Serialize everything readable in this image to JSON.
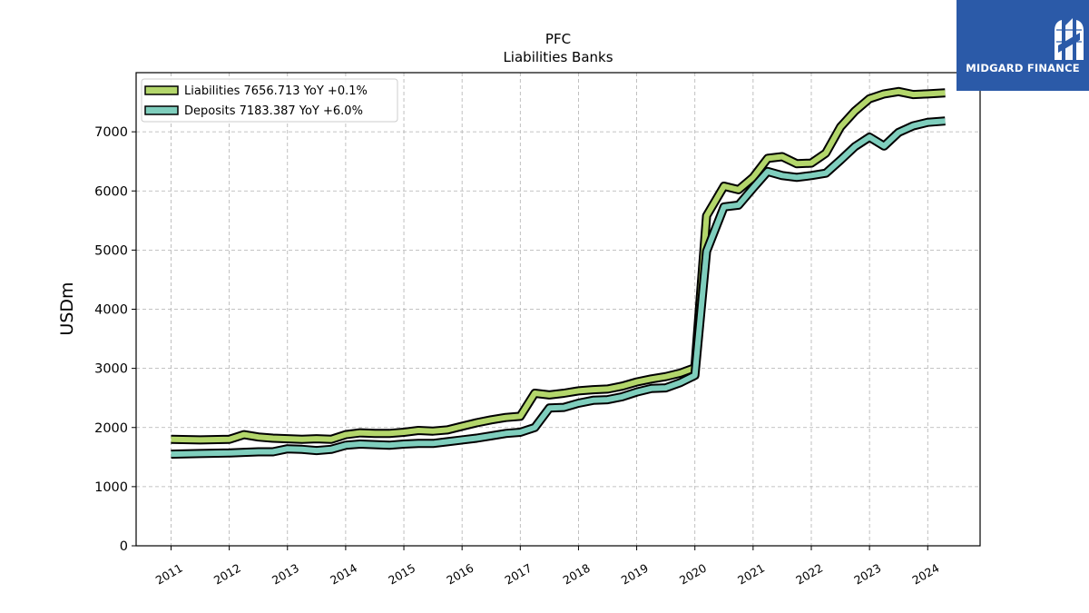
{
  "chart_data": {
    "type": "line",
    "title": "PFC",
    "subtitle": "Liabilities Banks",
    "xlabel": "",
    "ylabel": "USDm",
    "xlim": [
      2010.4,
      2024.9
    ],
    "ylim": [
      0,
      8000
    ],
    "yticks": [
      0,
      1000,
      2000,
      3000,
      4000,
      5000,
      6000,
      7000
    ],
    "xticks": [
      "2011",
      "2012",
      "2013",
      "2014",
      "2015",
      "2016",
      "2017",
      "2018",
      "2019",
      "2020",
      "2021",
      "2022",
      "2023",
      "2024"
    ],
    "grid": true,
    "legend_position": "top-left",
    "series": [
      {
        "name": "Liabilities",
        "legend_label": "Liabilities  7656.713 YoY +0.1%",
        "color": "#b3d66b",
        "x": [
          2011.0,
          2011.5,
          2012.0,
          2012.25,
          2012.5,
          2012.75,
          2013.0,
          2013.25,
          2013.5,
          2013.75,
          2014.0,
          2014.25,
          2014.5,
          2014.75,
          2015.0,
          2015.25,
          2015.5,
          2015.75,
          2016.0,
          2016.25,
          2016.5,
          2016.75,
          2017.0,
          2017.25,
          2017.5,
          2017.75,
          2018.0,
          2018.25,
          2018.5,
          2018.75,
          2019.0,
          2019.25,
          2019.5,
          2019.75,
          2020.0,
          2020.2,
          2020.5,
          2020.75,
          2021.0,
          2021.25,
          2021.5,
          2021.75,
          2022.0,
          2022.25,
          2022.5,
          2022.75,
          2023.0,
          2023.25,
          2023.5,
          2023.75,
          2024.0,
          2024.3
        ],
        "values": [
          1800,
          1790,
          1800,
          1880,
          1840,
          1820,
          1810,
          1800,
          1810,
          1800,
          1880,
          1910,
          1900,
          1900,
          1920,
          1950,
          1940,
          1960,
          2020,
          2080,
          2130,
          2170,
          2190,
          2580,
          2550,
          2580,
          2620,
          2640,
          2650,
          2700,
          2770,
          2820,
          2860,
          2920,
          3010,
          5580,
          6080,
          6020,
          6230,
          6550,
          6580,
          6460,
          6470,
          6640,
          7080,
          7350,
          7560,
          7640,
          7680,
          7630,
          7640,
          7657
        ]
      },
      {
        "name": "Deposits",
        "legend_label": "Deposits  7183.387 YoY +6.0%",
        "color": "#7fcebd",
        "x": [
          2011.0,
          2011.5,
          2012.0,
          2012.25,
          2012.5,
          2012.75,
          2013.0,
          2013.25,
          2013.5,
          2013.75,
          2014.0,
          2014.25,
          2014.5,
          2014.75,
          2015.0,
          2015.25,
          2015.5,
          2015.75,
          2016.0,
          2016.25,
          2016.5,
          2016.75,
          2017.0,
          2017.25,
          2017.5,
          2017.75,
          2018.0,
          2018.25,
          2018.5,
          2018.75,
          2019.0,
          2019.25,
          2019.5,
          2019.75,
          2020.0,
          2020.2,
          2020.5,
          2020.75,
          2021.0,
          2021.25,
          2021.5,
          2021.75,
          2022.0,
          2022.25,
          2022.5,
          2022.75,
          2023.0,
          2023.25,
          2023.5,
          2023.75,
          2024.0,
          2024.3
        ],
        "values": [
          1550,
          1560,
          1570,
          1580,
          1590,
          1590,
          1640,
          1630,
          1610,
          1630,
          1700,
          1720,
          1710,
          1700,
          1720,
          1730,
          1730,
          1760,
          1790,
          1820,
          1860,
          1900,
          1920,
          2000,
          2330,
          2340,
          2410,
          2460,
          2470,
          2520,
          2600,
          2660,
          2670,
          2760,
          2880,
          4980,
          5730,
          5760,
          6050,
          6330,
          6260,
          6230,
          6260,
          6300,
          6520,
          6750,
          6910,
          6760,
          6990,
          7100,
          7160,
          7183
        ]
      }
    ]
  },
  "logo": {
    "text": "MIDGARD FINANCE",
    "background": "#2b5aa8"
  }
}
